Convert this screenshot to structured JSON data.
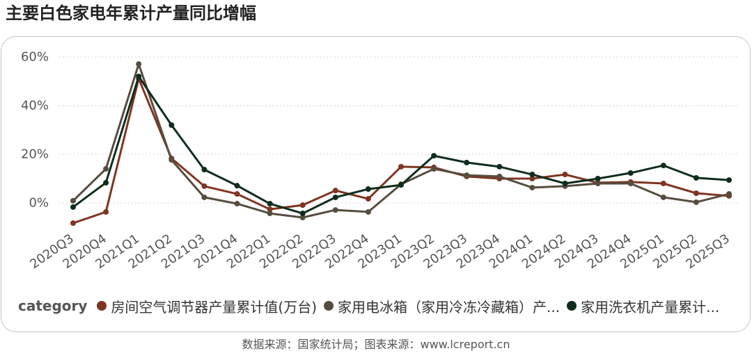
{
  "chart_data": {
    "type": "line",
    "title": "主要白色家电年累计产量同比增幅",
    "categories": [
      "2020Q3",
      "2020Q4",
      "2021Q1",
      "2021Q2",
      "2021Q3",
      "2021Q4",
      "2022Q1",
      "2022Q2",
      "2022Q3",
      "2022Q4",
      "2023Q1",
      "2023Q2",
      "2023Q3",
      "2023Q4",
      "2024Q1",
      "2024Q2",
      "2024Q3",
      "2024Q4",
      "2025Q1",
      "2025Q2",
      "2025Q3"
    ],
    "series": [
      {
        "name": "房间空气调节器产量累计值(万台)",
        "color": "#7f3521",
        "values": [
          -8.3,
          -3.7,
          51.1,
          18.3,
          6.9,
          3.7,
          -2.6,
          -0.9,
          5.1,
          1.7,
          14.9,
          14.6,
          10.9,
          10.0,
          10.0,
          11.7,
          8.3,
          8.6,
          8.0,
          4.0,
          2.9
        ]
      },
      {
        "name": "家用电冰箱（家用冷冻冷藏箱）产...",
        "color": "#574d3f",
        "values": [
          0.9,
          14.0,
          57.1,
          17.7,
          2.3,
          -0.3,
          -4.3,
          -6.0,
          -2.9,
          -3.7,
          7.7,
          14.0,
          11.4,
          10.9,
          6.3,
          6.9,
          8.0,
          8.0,
          2.3,
          0.3,
          3.7
        ]
      },
      {
        "name": "家用洗衣机产量累计...",
        "color": "#0f2d1d",
        "values": [
          -1.7,
          8.3,
          52.0,
          32.0,
          13.7,
          7.1,
          -0.3,
          -4.3,
          2.3,
          5.7,
          7.4,
          19.4,
          16.6,
          14.9,
          11.7,
          8.0,
          10.0,
          12.3,
          15.4,
          10.3,
          9.4
        ]
      }
    ],
    "yticks": [
      0,
      20,
      40,
      60
    ],
    "ytick_labels": [
      "0%",
      "20%",
      "40%",
      "60%"
    ],
    "ylim": [
      -12,
      62
    ],
    "grid": true,
    "legend": {
      "title": "category",
      "placement": "bottom-left"
    }
  },
  "footer": {
    "source": "数据来源：国家统计局；图表来源：www.lcreport.cn"
  }
}
